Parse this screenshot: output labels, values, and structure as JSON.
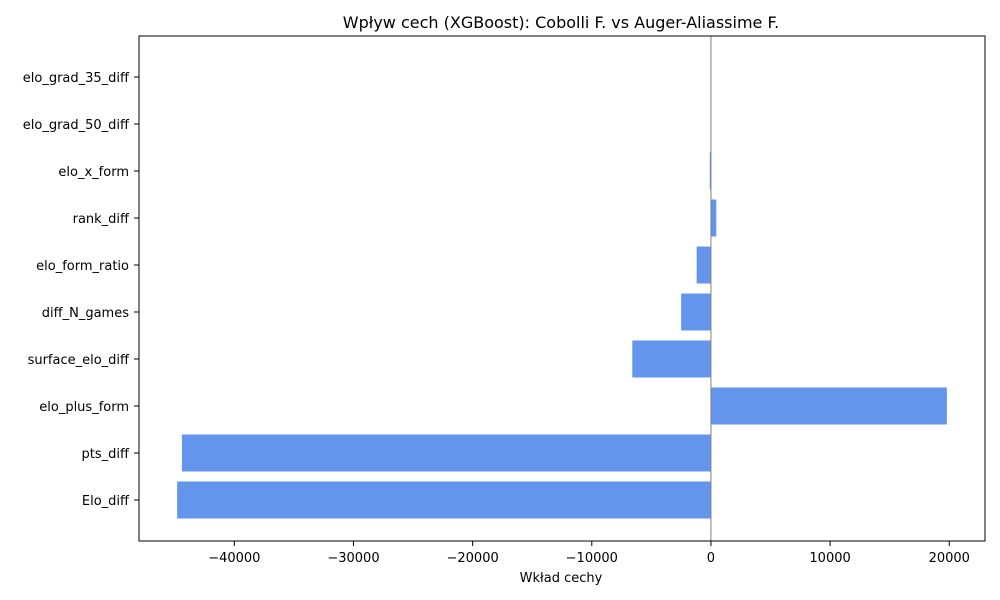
{
  "chart_data": {
    "type": "bar",
    "orientation": "horizontal",
    "title": "Wpływ cech (XGBoost): Cobolli F. vs Auger-Aliassime F.",
    "xlabel": "Wkład cechy",
    "ylabel": "",
    "xlim": [
      -48000,
      23000
    ],
    "x_ticks": [
      -40000,
      -30000,
      -20000,
      -10000,
      0,
      10000,
      20000
    ],
    "x_tick_labels": [
      "−40000",
      "−30000",
      "−20000",
      "−10000",
      "0",
      "10000",
      "20000"
    ],
    "categories": [
      "Elo_diff",
      "pts_diff",
      "elo_plus_form",
      "surface_elo_diff",
      "diff_N_games",
      "elo_form_ratio",
      "rank_diff",
      "elo_x_form",
      "elo_grad_50_diff",
      "elo_grad_35_diff"
    ],
    "values": [
      -44800,
      -44400,
      19800,
      -6600,
      -2500,
      -1200,
      450,
      -100,
      0,
      0
    ],
    "bar_color": "#6495ED",
    "zero_line_color": "#808080",
    "grid": false
  }
}
